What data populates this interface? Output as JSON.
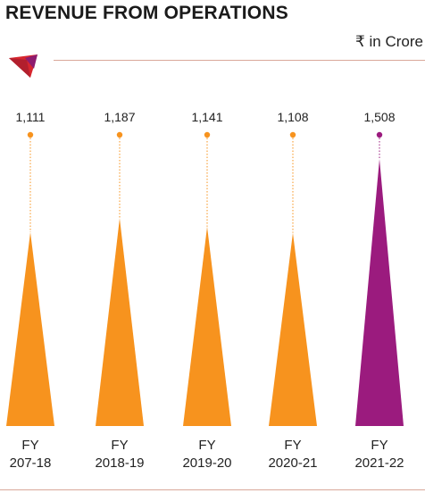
{
  "title": "REVENUE FROM OPERATIONS",
  "unit_label": "₹ in Crore",
  "logo_icon": "red-purple-triangle-logo-icon",
  "colors": {
    "default_bar": "#f7931e",
    "highlight_bar": "#9b1b7e",
    "rule": "#d9a89a"
  },
  "chart_data": {
    "type": "bar",
    "bar_shape": "triangle",
    "categories": [
      [
        "FY",
        "207-18"
      ],
      [
        "FY",
        "2018-19"
      ],
      [
        "FY",
        "2019-20"
      ],
      [
        "FY",
        "2020-21"
      ],
      [
        "FY",
        "2021-22"
      ]
    ],
    "values": [
      1111,
      1187,
      1141,
      1108,
      1508
    ],
    "value_labels": [
      "1,111",
      "1,187",
      "1,141",
      "1,108",
      "1,508"
    ],
    "highlight_index": 4,
    "title": "REVENUE FROM OPERATIONS",
    "ylabel": "₹ in Crore",
    "ylim": [
      0,
      1600
    ],
    "grid": false,
    "legend": "none"
  }
}
